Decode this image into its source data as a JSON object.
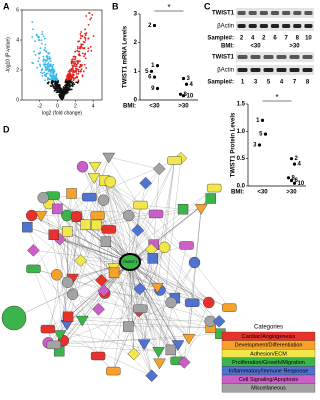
{
  "panels": {
    "a": {
      "label": "A",
      "annotation": "TWIST1",
      "x_label": "log2 (fold change)",
      "y_label": "-log10 (P-value)",
      "xlim": [
        -4,
        5
      ],
      "xticks": [
        -2,
        0,
        2,
        4
      ],
      "ylim": [
        0,
        6
      ],
      "yticks": [
        0,
        2,
        4,
        6
      ]
    },
    "b": {
      "label": "B",
      "y_label": "TWIST1 mRNA Levels",
      "ylim": [
        0,
        3
      ],
      "yticks": [
        0,
        1,
        2,
        3
      ],
      "group_title": "BMI:",
      "groups": [
        "<30",
        ">30"
      ],
      "significance": "*",
      "points": [
        {
          "group": 0,
          "value": 2.6,
          "label": "2"
        },
        {
          "group": 0,
          "value": 1.2,
          "label": "1"
        },
        {
          "group": 0,
          "value": 1.0,
          "label": "5"
        },
        {
          "group": 0,
          "value": 0.8,
          "label": "6"
        },
        {
          "group": 0,
          "value": 0.4,
          "label": "9"
        },
        {
          "group": 1,
          "value": 0.75,
          "label": "3"
        },
        {
          "group": 1,
          "value": 0.55,
          "label": "4"
        },
        {
          "group": 1,
          "value": 0.2,
          "label": "8"
        },
        {
          "group": 1,
          "value": 0.15,
          "label": "10"
        }
      ]
    },
    "c": {
      "label": "C",
      "blots": [
        {
          "rows": [
            "TWIST1",
            "βActin"
          ],
          "sample_title": "Sample#:",
          "samples": [
            "2",
            "4",
            "2",
            "6",
            "7",
            "8",
            "10"
          ],
          "group_title": "BMI:",
          "groups": [
            "<30",
            ">30"
          ]
        },
        {
          "rows": [
            "TWIST1",
            "βActin"
          ],
          "sample_title": "Sample#:",
          "samples": [
            "1",
            "3",
            "5",
            "4",
            "7",
            "8"
          ]
        }
      ],
      "scatter": {
        "y_label": "TWIST1 Protein Levels",
        "ylim": [
          0,
          1.5
        ],
        "yticks": [
          {
            "value": 0,
            "label": "0.0"
          },
          {
            "value": 0.5,
            "label": "0.5"
          },
          {
            "value": 1,
            "label": "1.0"
          },
          {
            "value": 1.5,
            "label": "1.5"
          }
        ],
        "group_title": "BMI:",
        "groups": [
          "<30",
          ">30"
        ],
        "significance": "*",
        "points": [
          {
            "group": 0,
            "value": 1.2,
            "label": "1"
          },
          {
            "group": 0,
            "value": 0.95,
            "label": "5"
          },
          {
            "group": 0,
            "value": 0.75,
            "label": "3"
          },
          {
            "group": 1,
            "value": 0.5,
            "label": "2"
          },
          {
            "group": 1,
            "value": 0.4,
            "label": "4"
          },
          {
            "group": 1,
            "value": 0.15,
            "label": "8"
          },
          {
            "group": 1,
            "value": 0.1,
            "label": "6"
          },
          {
            "group": 1,
            "value": 0.05,
            "label": "10"
          }
        ]
      }
    },
    "d": {
      "label": "D",
      "hub": "TWIST1",
      "legend_title": "Categories",
      "categories": [
        {
          "name": "Cardiac/Angiogenesis",
          "color": "#e8312a"
        },
        {
          "name": "Development/Differentiation",
          "color": "#f7a12b"
        },
        {
          "name": "Adhesion/ECM",
          "color": "#f1e64a"
        },
        {
          "name": "Proliferation/Growth/Migration",
          "color": "#3bb54a"
        },
        {
          "name": "Inflammatory/Immune Response",
          "color": "#4f73d2"
        },
        {
          "name": "Cell Signaling/Apoptosis",
          "color": "#cc5fc7"
        },
        {
          "name": "Miscellaneous",
          "color": "#a3a3a3"
        }
      ]
    }
  }
}
